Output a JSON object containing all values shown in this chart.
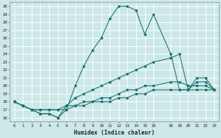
{
  "xlabel": "Humidex (Indice chaleur)",
  "background_color": "#cce8e8",
  "grid_color": "#ffffff",
  "line_color": "#1a7070",
  "xlim": [
    -0.5,
    23.5
  ],
  "ylim": [
    15.5,
    30.5
  ],
  "xtick_pos": [
    0,
    1,
    2,
    3,
    4,
    5,
    6,
    7,
    8,
    9,
    10,
    11,
    12,
    13,
    14,
    15,
    16,
    18,
    19,
    20,
    21,
    22,
    23
  ],
  "xtick_labels": [
    "0",
    "1",
    "2",
    "3",
    "4",
    "5",
    "6",
    "7",
    "8",
    "9",
    "10",
    "11",
    "12",
    "13",
    "14",
    "15",
    "16",
    "18",
    "19",
    "20",
    "21",
    "22",
    "23"
  ],
  "yticks": [
    16,
    17,
    18,
    19,
    20,
    21,
    22,
    23,
    24,
    25,
    26,
    27,
    28,
    29,
    30
  ],
  "line1_x": [
    0,
    1,
    2,
    3,
    4,
    5,
    6,
    7,
    8,
    9,
    10,
    11,
    12,
    13,
    14,
    15,
    16,
    18,
    19,
    20,
    21,
    22,
    23
  ],
  "line1_y": [
    18,
    17.5,
    17,
    16.5,
    16.5,
    16,
    17,
    20,
    22.5,
    24.5,
    26,
    28.5,
    30,
    30,
    29.5,
    26.5,
    29,
    24,
    19.5,
    19.5,
    21,
    21,
    19.5
  ],
  "line2_x": [
    0,
    1,
    2,
    3,
    4,
    5,
    6,
    7,
    8,
    9,
    10,
    11,
    12,
    13,
    14,
    15,
    16,
    18,
    19,
    20,
    21,
    22,
    23
  ],
  "line2_y": [
    18,
    17.5,
    17,
    16.5,
    16.5,
    16,
    17.5,
    18.5,
    19,
    19.5,
    20,
    20.5,
    21,
    21.5,
    22,
    22.5,
    23,
    23.5,
    24,
    19.5,
    20.5,
    20.5,
    19.5
  ],
  "line3_x": [
    0,
    1,
    2,
    3,
    4,
    5,
    6,
    7,
    8,
    9,
    10,
    11,
    12,
    13,
    14,
    15,
    16,
    18,
    19,
    20,
    21,
    22,
    23
  ],
  "line3_y": [
    18,
    17.5,
    17,
    17,
    17,
    17,
    17.5,
    17.5,
    18,
    18,
    18.5,
    18.5,
    19,
    19.5,
    19.5,
    20,
    20,
    20.5,
    20.5,
    20,
    20,
    20,
    19.5
  ],
  "line4_x": [
    0,
    1,
    2,
    3,
    4,
    5,
    6,
    7,
    8,
    9,
    10,
    11,
    12,
    13,
    14,
    15,
    16,
    18,
    19,
    20,
    21,
    22,
    23
  ],
  "line4_y": [
    18,
    17.5,
    17,
    17,
    17,
    17,
    17,
    17.5,
    17.5,
    18,
    18,
    18,
    18.5,
    18.5,
    19,
    19,
    19.5,
    19.5,
    19.5,
    19.5,
    19.5,
    19.5,
    19.5
  ]
}
